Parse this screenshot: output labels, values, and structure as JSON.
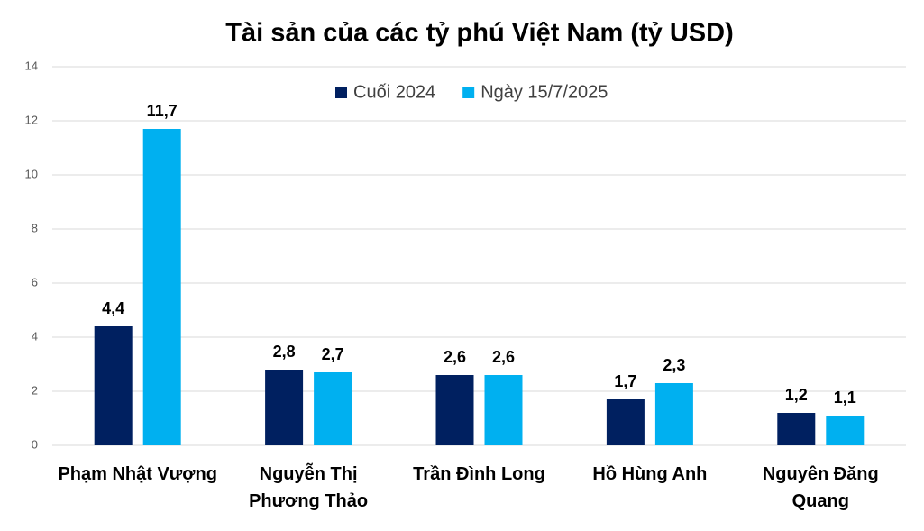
{
  "chart_data": {
    "type": "bar",
    "title": "Tài sản của các tỷ phú Việt Nam (tỷ USD)",
    "categories": [
      "Phạm Nhật Vượng",
      "Nguyễn Thị Phương Thảo",
      "Trần Đình Long",
      "Hồ Hùng Anh",
      "Nguyên Đăng Quang"
    ],
    "series": [
      {
        "name": "Cuối 2024",
        "color": "#002060",
        "values": [
          4.4,
          2.8,
          2.6,
          1.7,
          1.2
        ],
        "value_labels": [
          "4,4",
          "2,8",
          "2,6",
          "1,7",
          "1,2"
        ]
      },
      {
        "name": "Ngày 15/7/2025",
        "color": "#00b0f0",
        "values": [
          11.7,
          2.7,
          2.6,
          2.3,
          1.1
        ],
        "value_labels": [
          "11,7",
          "2,7",
          "2,6",
          "2,3",
          "1,1"
        ]
      }
    ],
    "ylim": [
      0,
      14
    ],
    "yticks": [
      0,
      2,
      4,
      6,
      8,
      10,
      12,
      14
    ],
    "grid": true,
    "legend": "top"
  }
}
